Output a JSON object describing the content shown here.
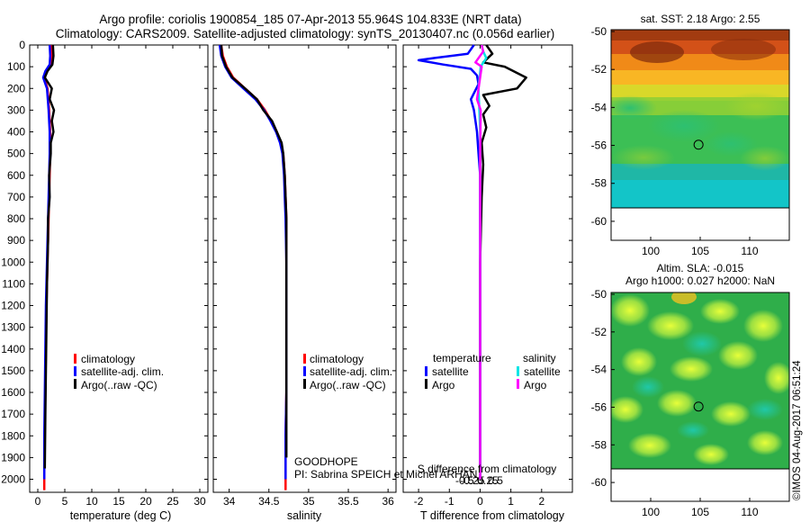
{
  "title": {
    "line1": "Argo profile: coriolis 1900854_185 07-Apr-2013 55.964S 104.833E (NRT data)",
    "line2": "Climatology: CARS2009. Satellite-adjusted climatology: synTS_20130407.nc (0.056d earlier)"
  },
  "colors": {
    "climatology": "#ff0000",
    "satellite": "#0000ff",
    "argo": "#000000",
    "salinity_satellite": "#00e5e5",
    "salinity_argo": "#ff00ff"
  },
  "depth_axis": {
    "ticks": [
      0,
      100,
      200,
      300,
      400,
      500,
      600,
      700,
      800,
      900,
      1000,
      1100,
      1200,
      1300,
      1400,
      1500,
      1600,
      1700,
      1800,
      1900,
      2000
    ],
    "range": [
      0,
      2060
    ]
  },
  "legend_profiles": {
    "climatology": "climatology",
    "satellite": "satellite-adj. clim.",
    "argo": "Argo(..raw -QC)"
  },
  "legend_diff": {
    "temperature_header": "temperature",
    "salinity_header": "salinity",
    "satellite": "satellite",
    "argo": "Argo"
  },
  "annotations": {
    "project": "GOODHOPE",
    "pi": "PI: Sabrina SPEICH et Michel ARHAN",
    "footer": "©IMOS 04-Aug-2017 06:51:24"
  },
  "chart_data": [
    {
      "type": "line",
      "name": "temperature",
      "xlabel": "temperature (deg C)",
      "ylabel": "",
      "xlim": [
        -1.5,
        31.5
      ],
      "ylim": [
        2060,
        0
      ],
      "xticks": [
        0,
        5,
        10,
        15,
        20,
        25,
        30
      ],
      "series": [
        {
          "name": "climatology",
          "color": "#ff0000",
          "x": [
            2.5,
            2.6,
            2.5,
            1.6,
            1.2,
            1.8,
            2.1,
            2.3,
            2.3,
            2.2,
            2.1,
            2.0,
            1.9,
            1.8,
            1.7,
            1.6,
            1.5,
            1.4,
            1.3,
            1.2,
            1.2
          ],
          "y": [
            0,
            50,
            90,
            120,
            150,
            200,
            300,
            400,
            500,
            600,
            700,
            800,
            900,
            1000,
            1100,
            1200,
            1400,
            1600,
            1800,
            1950,
            2050
          ]
        },
        {
          "name": "satellite-adj. clim.",
          "color": "#0000ff",
          "x": [
            2.2,
            2.3,
            2.2,
            1.4,
            1.0,
            1.7,
            2.0,
            2.2,
            2.2,
            2.1,
            2.0,
            1.9,
            1.8,
            1.7,
            1.6,
            1.5,
            1.4,
            1.3,
            1.2,
            1.2,
            1.2
          ],
          "y": [
            0,
            50,
            90,
            120,
            150,
            200,
            300,
            400,
            500,
            600,
            700,
            800,
            900,
            1000,
            1100,
            1200,
            1400,
            1600,
            1800,
            1950,
            2000
          ]
        },
        {
          "name": "Argo(..raw -QC)",
          "color": "#000000",
          "x": [
            2.8,
            2.9,
            2.7,
            1.8,
            1.3,
            2.6,
            2.2,
            3.0,
            2.6,
            2.9,
            2.4,
            2.4,
            2.1,
            2.2,
            1.9,
            1.9,
            1.7,
            1.6,
            1.5,
            1.4,
            1.3
          ],
          "y": [
            0,
            50,
            90,
            120,
            150,
            200,
            250,
            300,
            350,
            400,
            450,
            500,
            600,
            700,
            800,
            900,
            1100,
            1300,
            1500,
            1700,
            1950
          ]
        }
      ]
    },
    {
      "type": "line",
      "name": "salinity",
      "xlabel": "salinity",
      "ylabel": "",
      "xlim": [
        33.8,
        36.1
      ],
      "ylim": [
        2060,
        0
      ],
      "xticks": [
        34,
        34.5,
        35,
        35.5,
        36
      ],
      "xticklabels": [
        "34",
        "34.5",
        "35",
        "35.5",
        "36"
      ],
      "series": [
        {
          "name": "climatology",
          "color": "#ff0000",
          "x": [
            33.9,
            33.92,
            33.97,
            34.05,
            34.2,
            34.35,
            34.45,
            34.53,
            34.6,
            34.65,
            34.68,
            34.7,
            34.71,
            34.72,
            34.72,
            34.72,
            34.72,
            34.72,
            34.71,
            34.71
          ],
          "y": [
            0,
            50,
            100,
            150,
            200,
            250,
            300,
            350,
            400,
            450,
            500,
            600,
            700,
            800,
            1000,
            1200,
            1400,
            1600,
            1800,
            2050
          ]
        },
        {
          "name": "satellite-adj. clim.",
          "color": "#0000ff",
          "x": [
            33.88,
            33.9,
            33.95,
            34.03,
            34.18,
            34.33,
            34.44,
            34.52,
            34.59,
            34.64,
            34.67,
            34.69,
            34.7,
            34.71,
            34.72,
            34.72,
            34.72,
            34.72,
            34.71,
            34.71
          ],
          "y": [
            0,
            50,
            100,
            150,
            200,
            250,
            300,
            350,
            400,
            450,
            500,
            600,
            700,
            800,
            1000,
            1200,
            1400,
            1600,
            1800,
            2000
          ]
        },
        {
          "name": "Argo(..raw -QC)",
          "color": "#000000",
          "x": [
            33.9,
            33.91,
            33.96,
            34.04,
            34.2,
            34.35,
            34.43,
            34.54,
            34.6,
            34.66,
            34.68,
            34.7,
            34.71,
            34.72,
            34.72,
            34.72,
            34.72
          ],
          "y": [
            0,
            50,
            100,
            150,
            200,
            250,
            300,
            350,
            400,
            450,
            500,
            600,
            700,
            800,
            1000,
            1400,
            1900
          ]
        }
      ]
    },
    {
      "type": "line",
      "name": "difference from climatology",
      "xlabel": "T difference from climatology",
      "xlabel_top": "S difference from climatology",
      "ylabel": "",
      "xlim": [
        -2.5,
        3.0
      ],
      "ylim": [
        2060,
        0
      ],
      "xticks": [
        -2,
        -1,
        0,
        1,
        2
      ],
      "xtop_ticks": [
        -0.5,
        -0.25,
        0,
        0.25,
        0.5
      ],
      "xtop_ticklabels": [
        "-0.5",
        "-0.25",
        "0",
        "0.25",
        "0.5"
      ],
      "series": [
        {
          "name": "temperature satellite",
          "color": "#0000ff",
          "x": [
            -0.2,
            -0.4,
            -1.5,
            -2.0,
            -1.2,
            -0.3,
            -0.1,
            -0.05,
            -0.3,
            -0.2,
            -0.1,
            -0.05,
            0,
            0,
            0
          ],
          "y": [
            0,
            40,
            60,
            70,
            90,
            110,
            140,
            180,
            250,
            300,
            400,
            500,
            600,
            1000,
            1950
          ]
        },
        {
          "name": "temperature Argo",
          "color": "#000000",
          "x": [
            0.2,
            0.4,
            0.1,
            0.8,
            1.5,
            1.2,
            0.1,
            0.3,
            0.1,
            0.2,
            0.05,
            0.1,
            0.05,
            0,
            0,
            0
          ],
          "y": [
            0,
            40,
            80,
            100,
            150,
            200,
            230,
            280,
            320,
            380,
            450,
            550,
            700,
            1000,
            1500,
            2000
          ]
        },
        {
          "name": "salinity satellite",
          "color": "#00e5e5",
          "x": [
            0.05,
            0.1,
            0.2,
            0.02,
            -0.05,
            0,
            0
          ],
          "y": [
            0,
            30,
            60,
            100,
            200,
            400,
            2000
          ]
        },
        {
          "name": "salinity Argo",
          "color": "#ff00ff",
          "x": [
            0.05,
            0.1,
            -0.15,
            0.05,
            -0.1,
            0.02,
            0,
            0
          ],
          "y": [
            0,
            30,
            80,
            100,
            250,
            300,
            500,
            2000
          ]
        }
      ]
    },
    {
      "type": "heatmap",
      "name": "sst_map",
      "title": "sat. SST: 2.18 Argo: 2.55",
      "xlim": [
        96,
        114
      ],
      "ylim": [
        -61,
        -50
      ],
      "xticks": [
        100,
        105,
        110
      ],
      "yticks": [
        -50,
        -52,
        -54,
        -56,
        -58,
        -60
      ],
      "marker": {
        "lon": 104.833,
        "lat": -55.964
      }
    },
    {
      "type": "heatmap",
      "name": "sla_map",
      "title": "Altim. SLA: -0.015",
      "subtitle": "Argo h1000: 0.027 h2000: NaN",
      "xlim": [
        96,
        114
      ],
      "ylim": [
        -61,
        -50
      ],
      "xticks": [
        100,
        105,
        110
      ],
      "yticks": [
        -50,
        -52,
        -54,
        -56,
        -58,
        -60
      ],
      "marker": {
        "lon": 104.833,
        "lat": -55.964
      }
    }
  ]
}
